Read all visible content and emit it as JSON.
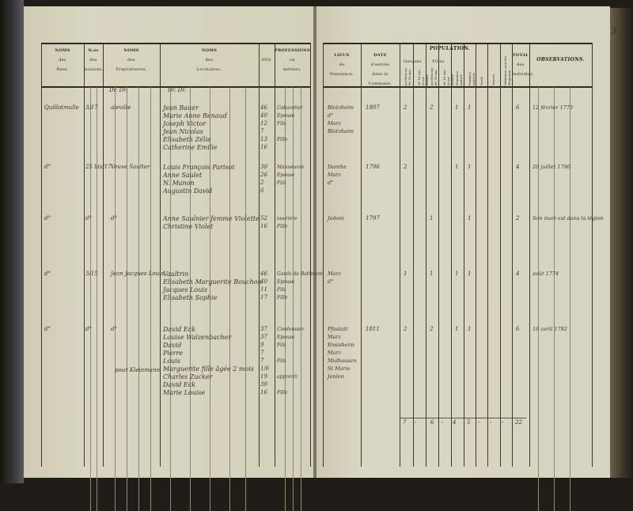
{
  "page_number": "3",
  "headers_left": [
    {
      "title": "NOMS",
      "l2": "des",
      "l3": "Rues."
    },
    {
      "title": "N.os",
      "l2": "des",
      "l3": "maisons."
    },
    {
      "title": "NOMS",
      "l2": "des",
      "l3": "Propriétaires."
    },
    {
      "title": "NOMS",
      "l2": "des",
      "l3": "Locataires."
    },
    {
      "title": "",
      "l2": "ANS.",
      "l3": ""
    },
    {
      "title": "PROFESSIONS",
      "l2": "ou",
      "l3": "métiers."
    }
  ],
  "headers_right": {
    "birthplace": {
      "title": "LIEUX",
      "l2": "de",
      "l3": "Naissance."
    },
    "date": {
      "title": "DATE",
      "l2": "d'entrée",
      "l3": "dans la Commune."
    },
    "population": "POPULATION.",
    "garcons": "Garçons",
    "filles": "Filles",
    "sub": [
      "au-dessous de 18 ans",
      "de 18 ans et au-dessus",
      "au-dessous de 18 ans",
      "de 18 ans et au-dessus",
      "Hommes mariés",
      "Femmes mariées",
      "Veufs",
      "Veuves"
    ],
    "militaires": "Militaires sous les drapeaux",
    "total": {
      "title": "TOTAL",
      "l2": "des",
      "l3": "Individus."
    },
    "observations": "OBSERVATIONS."
  },
  "column_marks": [
    "Dr. Dr.",
    "Dr. Dr."
  ],
  "households": [
    {
      "street": "Quillotmulle",
      "house": "3/17",
      "owner": "aleville",
      "note": "",
      "tenants": [
        [
          "Jean Bauer",
          "46",
          "Cabaretier"
        ],
        [
          "Marie Anne Renaud",
          "40",
          "Epouse"
        ],
        [
          "Joseph Victor",
          "12",
          "Fils"
        ],
        [
          "Jean Nicolas",
          "7",
          ""
        ],
        [
          "Elisabeth Zélie",
          "13",
          "Fille"
        ],
        [
          "Catherine Emilie",
          "16",
          ""
        ]
      ],
      "birthplace": [
        "Blotzheim",
        "d°",
        "Marz",
        "Blotzheim"
      ],
      "date": "1807",
      "pop": [
        "2",
        "",
        "2",
        "",
        "1",
        "1",
        "",
        ""
      ],
      "total": "6",
      "obs": "12 février 1773"
    },
    {
      "street": "d°",
      "house": "25 bis/17",
      "owner": "Veuve Saulter",
      "note": "",
      "tenants": [
        [
          "Louis François Parisot",
          "30",
          "Manoeuvre"
        ],
        [
          "Anne Saulet",
          "26",
          "Epouse"
        ],
        [
          "N. Manon",
          "2",
          "Fils"
        ],
        [
          "Augustin David",
          "6",
          ""
        ]
      ],
      "birthplace": [
        "Danthe",
        "Marz",
        "d°"
      ],
      "date": "1796",
      "pop": [
        "2",
        "",
        "",
        "",
        "1",
        "1",
        "",
        ""
      ],
      "total": "4",
      "obs": "20 juillet 1790"
    },
    {
      "street": "d°",
      "house": "d°",
      "owner": "d°",
      "note": "",
      "tenants": [
        [
          "Anne Saulnier femme Violette",
          "52",
          "ouvrière"
        ],
        [
          "Christine Violet",
          "16",
          "Fille"
        ]
      ],
      "birthplace": [
        "Jedoni"
      ],
      "date": "1797",
      "pop": [
        "",
        "",
        "1",
        "",
        "",
        "1",
        "",
        ""
      ],
      "total": "2",
      "obs": "Son mari est dans la légion"
    },
    {
      "street": "d°",
      "house": "3/15",
      "owner": "Jean Jacques Louis",
      "note": "",
      "tenants": [
        [
          "Vaultrin",
          "46",
          "Garde de Batiment"
        ],
        [
          "Elisabeth Marguerite Bouchon",
          "40",
          "Epouse"
        ],
        [
          "Jacques Louis",
          "11",
          "Fils"
        ],
        [
          "Elisabeth Sophie",
          "17",
          "Fille"
        ]
      ],
      "birthplace": [
        "Marz",
        "d°"
      ],
      "date": "",
      "pop": [
        "1",
        "",
        "1",
        "",
        "1",
        "1",
        "",
        ""
      ],
      "total": "4",
      "obs": "août 1774"
    },
    {
      "street": "d°",
      "house": "d°",
      "owner": "d°",
      "note": "pour Kleinmann",
      "tenants": [
        [
          "David Eck",
          "37",
          "Cordonnier"
        ],
        [
          "Louise Walzenbacher",
          "37",
          "Epouse"
        ],
        [
          "David",
          "9",
          "Fils"
        ],
        [
          "Pierre",
          "7",
          ""
        ],
        [
          "Louis",
          "7",
          "Fils"
        ],
        [
          "Marguerite fille âgée 2 mois",
          "1/6",
          ""
        ],
        [
          "Charles Zucker",
          "19",
          "apprenti"
        ],
        [
          "David Eck",
          "30",
          ""
        ],
        [
          "Marie Louise",
          "16",
          "Fille"
        ]
      ],
      "birthplace": [
        "Pfastatt",
        "Marz",
        "Ensisheim",
        "Marz",
        "Mulhausen",
        "St Marie",
        "Jenlen"
      ],
      "date": "1811",
      "pop": [
        "2",
        "",
        "2",
        "",
        "1",
        "1",
        "",
        ""
      ],
      "total": "6",
      "obs": "16 avril 1792"
    }
  ],
  "totals": [
    "7",
    "-",
    "6",
    "-",
    "4",
    "5",
    "-",
    "-",
    "-",
    "22"
  ]
}
